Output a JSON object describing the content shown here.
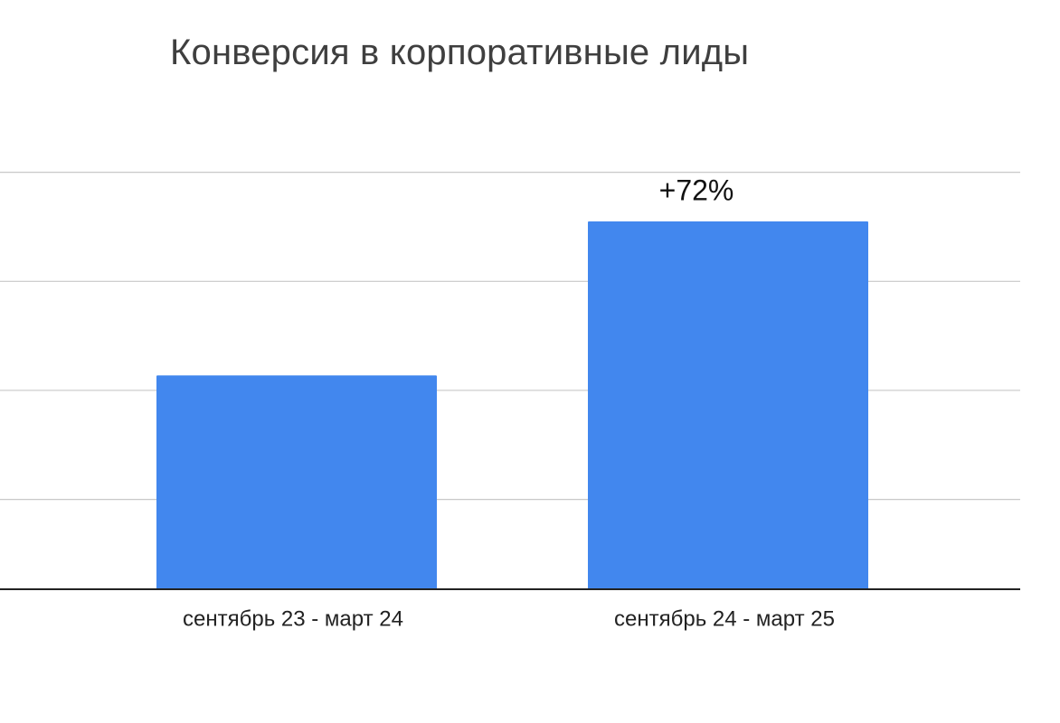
{
  "chart_data": {
    "type": "bar",
    "title": "Конверсия в корпоративные лиды",
    "xlabel": "",
    "ylabel": "",
    "categories": [
      "сентябрь 23 - март 24",
      "сентябрь 24 - март 25"
    ],
    "values": [
      1.0,
      1.72
    ],
    "data_labels": [
      "",
      "+72%"
    ],
    "ylim": [
      0,
      2.08
    ],
    "gridlines": [
      0.42,
      0.93,
      1.44,
      1.95
    ],
    "grid": true,
    "legend": "none",
    "bar_color": "#4287ee",
    "grid_color": "#c8c8c8",
    "axis_color": "#222222"
  }
}
